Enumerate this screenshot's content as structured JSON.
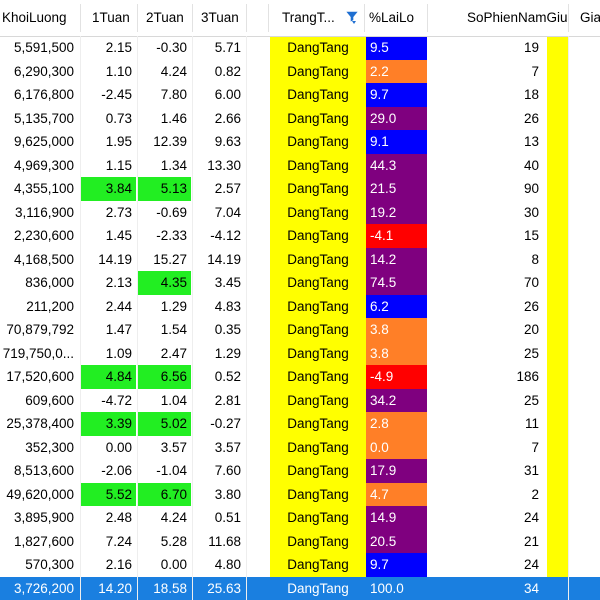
{
  "headers": {
    "khoiluong": "KhoiLuong",
    "tuan1": "1Tuan",
    "tuan2": "2Tuan",
    "tuan3": "3Tuan",
    "trangthai": "TrangT...",
    "lailo": "%LaiLo",
    "sophien": "SoPhienNamGiu",
    "gia": "Gia"
  },
  "colors": {
    "yellow": "#ffff00",
    "green": "#22ee22",
    "blue": "#0000ff",
    "orange": "#ff7f27",
    "purple": "#7f007f",
    "red": "#ff0000",
    "selection": "#1a7fe0"
  },
  "rows": [
    {
      "khoiluong": "5,591,500",
      "t1": "2.15",
      "t2": "-0.30",
      "t3": "5.71",
      "trangthai": "DangTang",
      "lailo": "9.5",
      "lailo_color": "#0000ff",
      "sophien": "19",
      "t1_green": false,
      "t2_green": false
    },
    {
      "khoiluong": "6,290,300",
      "t1": "1.10",
      "t2": "4.24",
      "t3": "0.82",
      "trangthai": "DangTang",
      "lailo": "2.2",
      "lailo_color": "#ff7f27",
      "sophien": "7",
      "t1_green": false,
      "t2_green": false
    },
    {
      "khoiluong": "6,176,800",
      "t1": "-2.45",
      "t2": "7.80",
      "t3": "6.00",
      "trangthai": "DangTang",
      "lailo": "9.7",
      "lailo_color": "#0000ff",
      "sophien": "18",
      "t1_green": false,
      "t2_green": false
    },
    {
      "khoiluong": "5,135,700",
      "t1": "0.73",
      "t2": "1.46",
      "t3": "2.66",
      "trangthai": "DangTang",
      "lailo": "29.0",
      "lailo_color": "#7f007f",
      "sophien": "26",
      "t1_green": false,
      "t2_green": false
    },
    {
      "khoiluong": "9,625,000",
      "t1": "1.95",
      "t2": "12.39",
      "t3": "9.63",
      "trangthai": "DangTang",
      "lailo": "9.1",
      "lailo_color": "#0000ff",
      "sophien": "13",
      "t1_green": false,
      "t2_green": false
    },
    {
      "khoiluong": "4,969,300",
      "t1": "1.15",
      "t2": "1.34",
      "t3": "13.30",
      "trangthai": "DangTang",
      "lailo": "44.3",
      "lailo_color": "#7f007f",
      "sophien": "40",
      "t1_green": false,
      "t2_green": false
    },
    {
      "khoiluong": "4,355,100",
      "t1": "3.84",
      "t2": "5.13",
      "t3": "2.57",
      "trangthai": "DangTang",
      "lailo": "21.5",
      "lailo_color": "#7f007f",
      "sophien": "90",
      "t1_green": true,
      "t2_green": true
    },
    {
      "khoiluong": "3,116,900",
      "t1": "2.73",
      "t2": "-0.69",
      "t3": "7.04",
      "trangthai": "DangTang",
      "lailo": "19.2",
      "lailo_color": "#7f007f",
      "sophien": "30",
      "t1_green": false,
      "t2_green": false
    },
    {
      "khoiluong": "2,230,600",
      "t1": "1.45",
      "t2": "-2.33",
      "t3": "-4.12",
      "trangthai": "DangTang",
      "lailo": "-4.1",
      "lailo_color": "#ff0000",
      "sophien": "15",
      "t1_green": false,
      "t2_green": false
    },
    {
      "khoiluong": "4,168,500",
      "t1": "14.19",
      "t2": "15.27",
      "t3": "14.19",
      "trangthai": "DangTang",
      "lailo": "14.2",
      "lailo_color": "#7f007f",
      "sophien": "8",
      "t1_green": false,
      "t2_green": false
    },
    {
      "khoiluong": "836,000",
      "t1": "2.13",
      "t2": "4.35",
      "t3": "3.45",
      "trangthai": "DangTang",
      "lailo": "74.5",
      "lailo_color": "#7f007f",
      "sophien": "70",
      "t1_green": false,
      "t2_green": true
    },
    {
      "khoiluong": "211,200",
      "t1": "2.44",
      "t2": "1.29",
      "t3": "4.83",
      "trangthai": "DangTang",
      "lailo": "6.2",
      "lailo_color": "#0000ff",
      "sophien": "26",
      "t1_green": false,
      "t2_green": false
    },
    {
      "khoiluong": "70,879,792",
      "t1": "1.47",
      "t2": "1.54",
      "t3": "0.35",
      "trangthai": "DangTang",
      "lailo": "3.8",
      "lailo_color": "#ff7f27",
      "sophien": "20",
      "t1_green": false,
      "t2_green": false
    },
    {
      "khoiluong": "719,750,0...",
      "t1": "1.09",
      "t2": "2.47",
      "t3": "1.29",
      "trangthai": "DangTang",
      "lailo": "3.8",
      "lailo_color": "#ff7f27",
      "sophien": "25",
      "t1_green": false,
      "t2_green": false
    },
    {
      "khoiluong": "17,520,600",
      "t1": "4.84",
      "t2": "6.56",
      "t3": "0.52",
      "trangthai": "DangTang",
      "lailo": "-4.9",
      "lailo_color": "#ff0000",
      "sophien": "186",
      "t1_green": true,
      "t2_green": true
    },
    {
      "khoiluong": "609,600",
      "t1": "-4.72",
      "t2": "1.04",
      "t3": "2.81",
      "trangthai": "DangTang",
      "lailo": "34.2",
      "lailo_color": "#7f007f",
      "sophien": "25",
      "t1_green": false,
      "t2_green": false
    },
    {
      "khoiluong": "25,378,400",
      "t1": "3.39",
      "t2": "5.02",
      "t3": "-0.27",
      "trangthai": "DangTang",
      "lailo": "2.8",
      "lailo_color": "#ff7f27",
      "sophien": "11",
      "t1_green": true,
      "t2_green": true
    },
    {
      "khoiluong": "352,300",
      "t1": "0.00",
      "t2": "3.57",
      "t3": "3.57",
      "trangthai": "DangTang",
      "lailo": "0.0",
      "lailo_color": "#ff7f27",
      "sophien": "7",
      "t1_green": false,
      "t2_green": false
    },
    {
      "khoiluong": "8,513,600",
      "t1": "-2.06",
      "t2": "-1.04",
      "t3": "7.60",
      "trangthai": "DangTang",
      "lailo": "17.9",
      "lailo_color": "#7f007f",
      "sophien": "31",
      "t1_green": false,
      "t2_green": false
    },
    {
      "khoiluong": "49,620,000",
      "t1": "5.52",
      "t2": "6.70",
      "t3": "3.80",
      "trangthai": "DangTang",
      "lailo": "4.7",
      "lailo_color": "#ff7f27",
      "sophien": "2",
      "t1_green": true,
      "t2_green": true
    },
    {
      "khoiluong": "3,895,900",
      "t1": "2.48",
      "t2": "4.24",
      "t3": "0.51",
      "trangthai": "DangTang",
      "lailo": "14.9",
      "lailo_color": "#7f007f",
      "sophien": "24",
      "t1_green": false,
      "t2_green": false
    },
    {
      "khoiluong": "1,827,600",
      "t1": "7.24",
      "t2": "5.28",
      "t3": "11.68",
      "trangthai": "DangTang",
      "lailo": "20.5",
      "lailo_color": "#7f007f",
      "sophien": "21",
      "t1_green": false,
      "t2_green": false
    },
    {
      "khoiluong": "570,300",
      "t1": "2.16",
      "t2": "0.00",
      "t3": "4.80",
      "trangthai": "DangTang",
      "lailo": "9.7",
      "lailo_color": "#0000ff",
      "sophien": "24",
      "t1_green": false,
      "t2_green": false
    },
    {
      "khoiluong": "3,726,200",
      "t1": "14.20",
      "t2": "18.58",
      "t3": "25.63",
      "extra": "...",
      "trangthai": "DangTang",
      "lailo": "100.0",
      "lailo_color": "#1a7fe0",
      "sophien": "34",
      "t1_green": false,
      "t2_green": false,
      "selected": true
    }
  ]
}
